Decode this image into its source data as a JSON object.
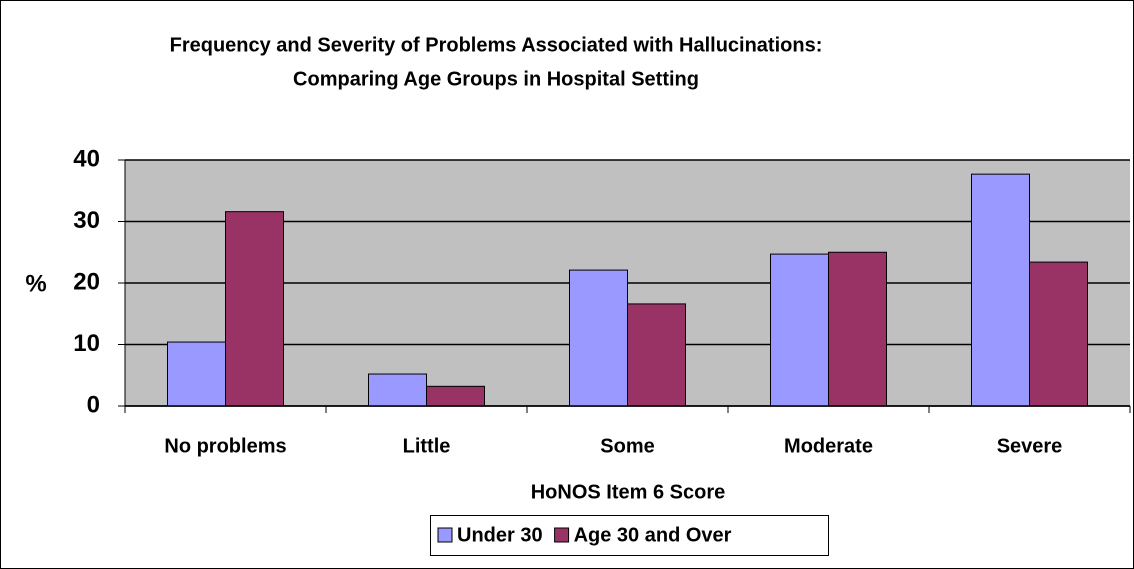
{
  "chart_data": {
    "type": "bar",
    "title": [
      "Frequency and Severity of Problems Associated with Hallucinations:",
      "Comparing Age Groups in Hospital Setting"
    ],
    "ylabel": "%",
    "xlabel": "HoNOS Item 6 Score",
    "categories": [
      "No problems",
      "Little",
      "Some",
      "Moderate",
      "Severe"
    ],
    "series": [
      {
        "name": "Under 30",
        "color": "#9999ff",
        "values": [
          10.4,
          5.2,
          22.1,
          24.7,
          37.7
        ]
      },
      {
        "name": "Age 30 and Over",
        "color": "#993366",
        "values": [
          31.6,
          3.2,
          16.6,
          25.0,
          23.4
        ]
      }
    ],
    "ylim": [
      0,
      40
    ],
    "yticks": [
      0,
      10,
      20,
      30,
      40
    ],
    "grid": true,
    "legend": "bottom"
  }
}
